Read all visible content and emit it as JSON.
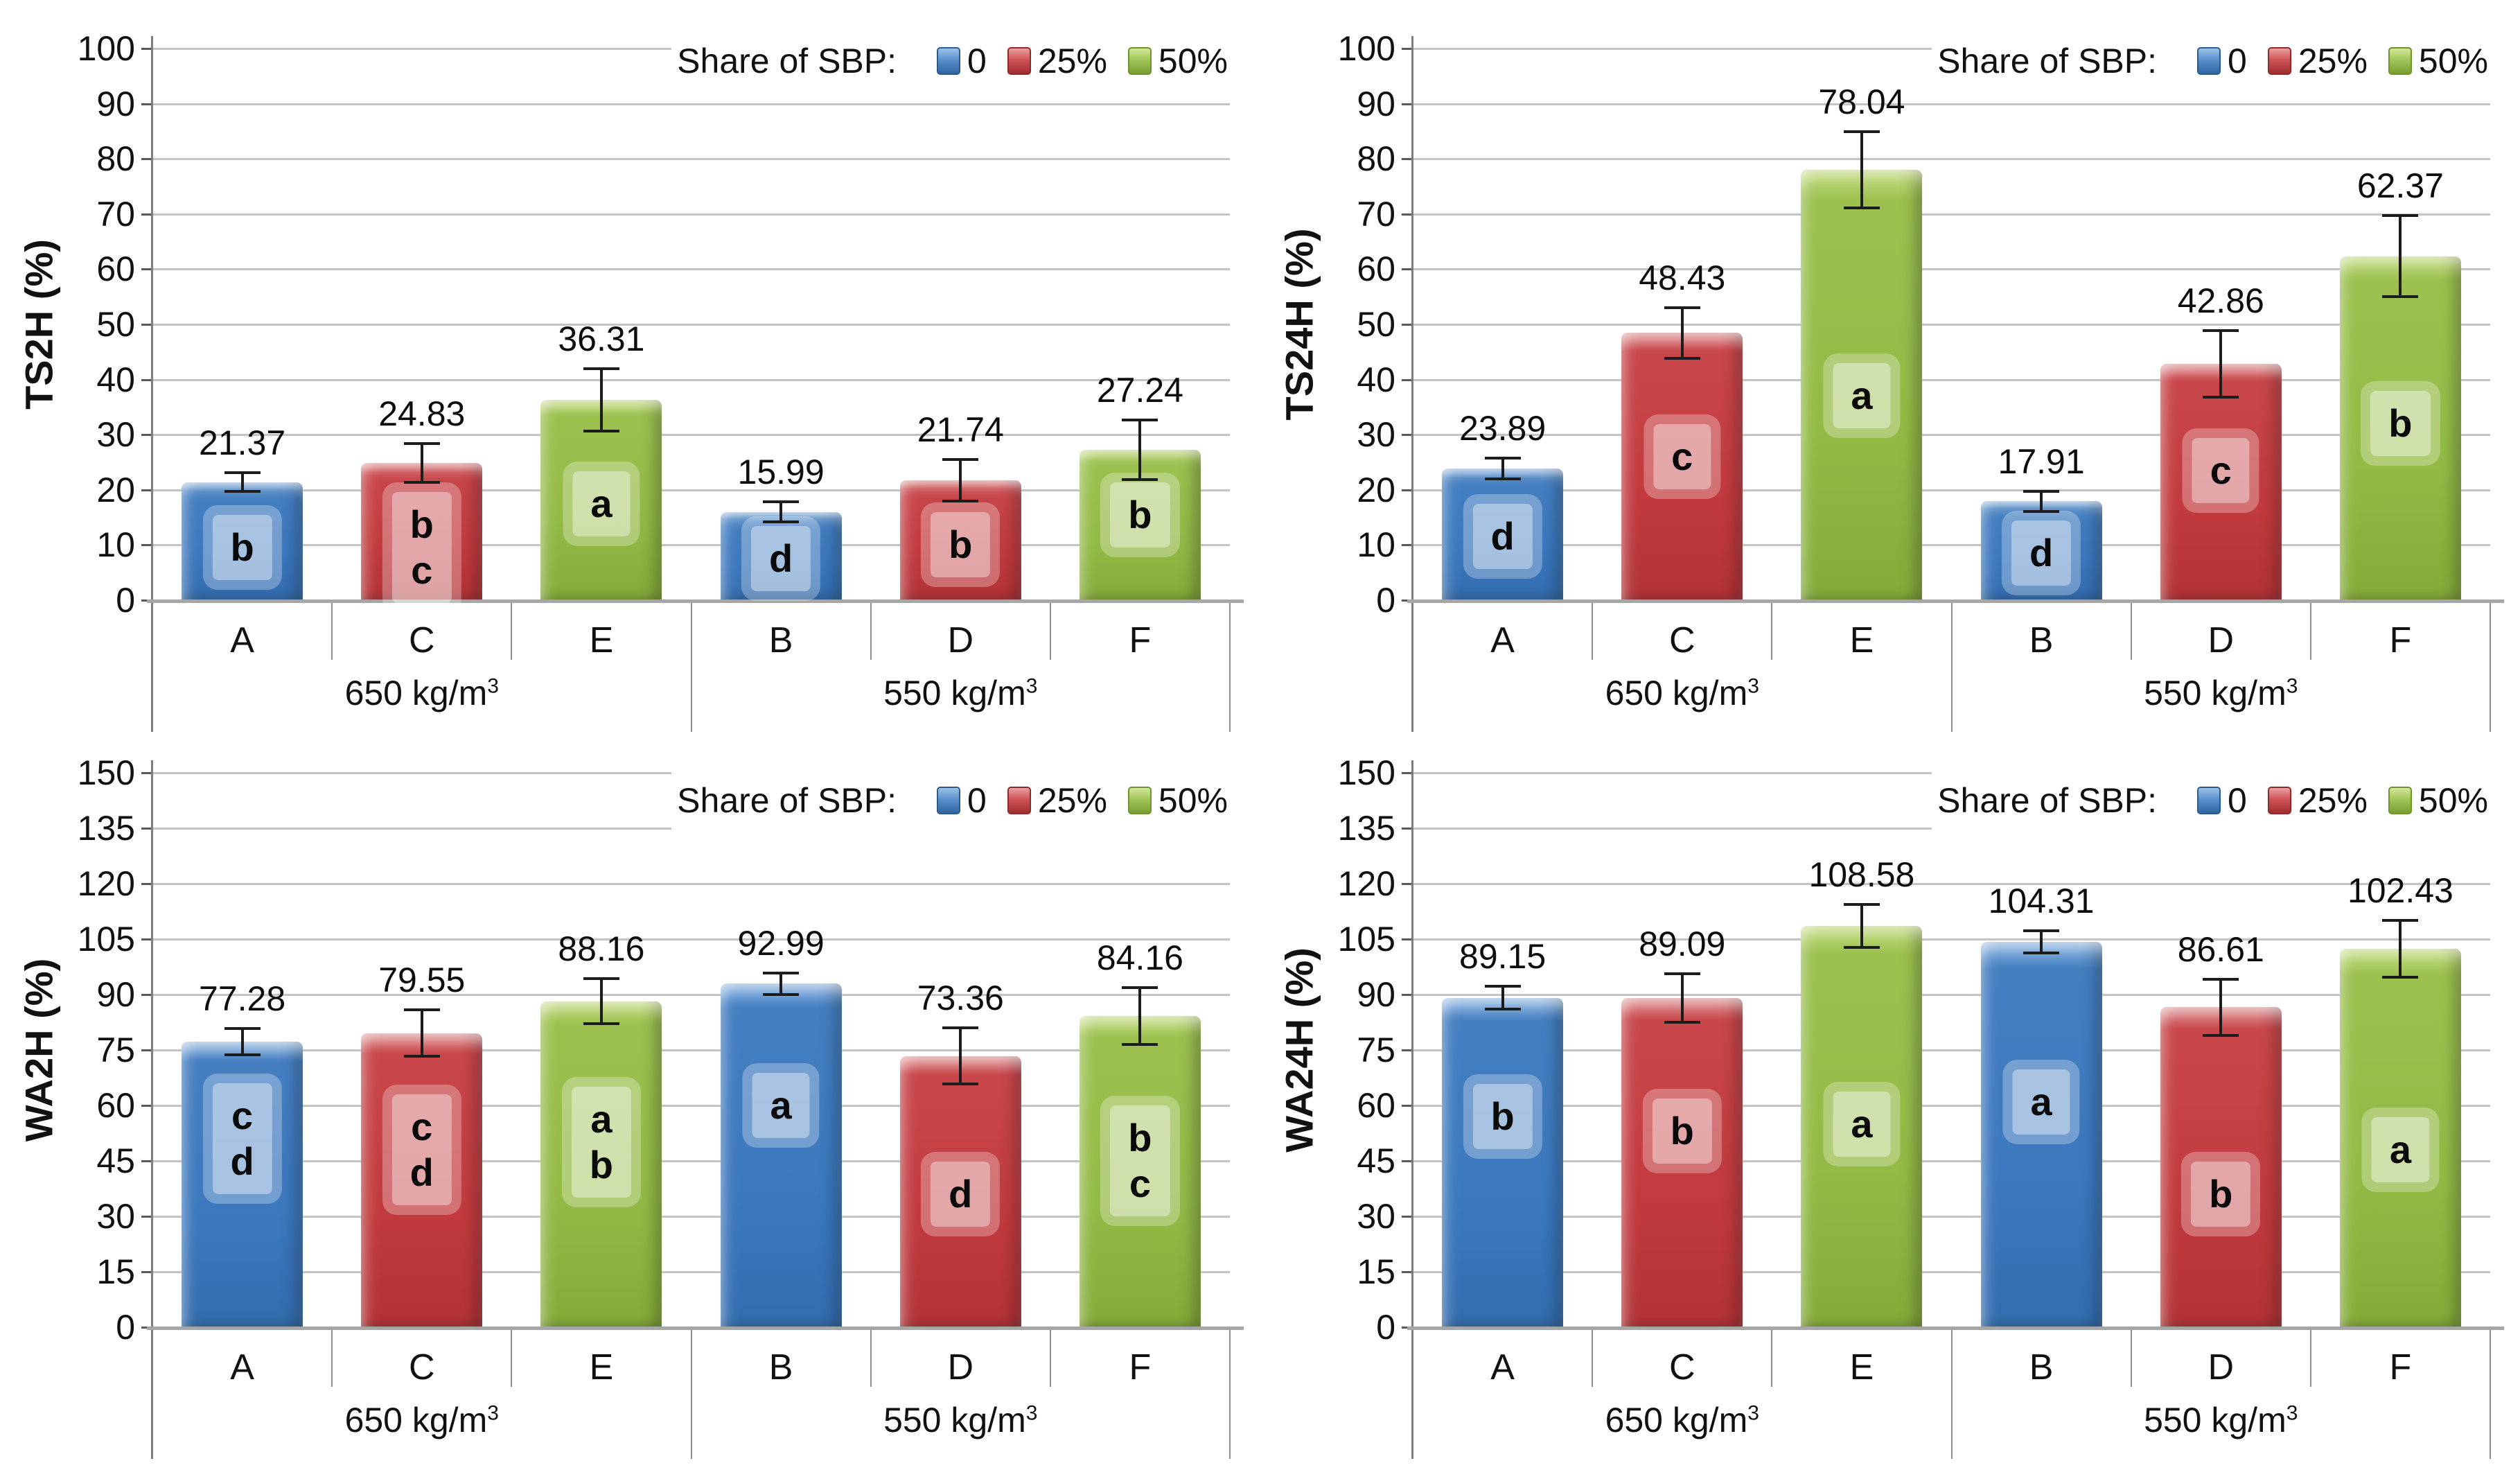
{
  "colors": {
    "blue_main": "#3B78BD",
    "blue_light": "#8FB8E4",
    "blue_dark": "#2D5F97",
    "red_main": "#C23B3E",
    "red_light": "#E08E8F",
    "red_dark": "#9A2F31",
    "green_main": "#93BA45",
    "green_light": "#C6DE82",
    "green_dark": "#72982E",
    "gridline": "#C4C4C4",
    "x_axis": "#A6A6A6",
    "y_axis": "#7D7D7D",
    "text": "#111111"
  },
  "legend": {
    "title": "Share of SBP:",
    "items": [
      {
        "label": "0",
        "color": "blue"
      },
      {
        "label": "25%",
        "color": "red"
      },
      {
        "label": "50%",
        "color": "green"
      }
    ]
  },
  "chart_data": [
    {
      "type": "bar",
      "ylabel": "TS2H (%)",
      "ylim": [
        0,
        100
      ],
      "ytick_step": 10,
      "grid": true,
      "legend_position": "top-right",
      "categories": [
        "A",
        "C",
        "E",
        "B",
        "D",
        "F"
      ],
      "groups": [
        {
          "label": "650 kg/m",
          "sup": "3"
        },
        {
          "label": "550 kg/m",
          "sup": "3"
        }
      ],
      "bars": [
        {
          "category": "A",
          "color": "blue",
          "value": 21.37,
          "label": "21.37",
          "error": 1.7,
          "letters": [
            "b"
          ],
          "letter_y": 9.5
        },
        {
          "category": "C",
          "color": "red",
          "value": 24.83,
          "label": "24.83",
          "error": 3.5,
          "letters": [
            "b",
            "c"
          ],
          "letter_y": 9.5
        },
        {
          "category": "E",
          "color": "green",
          "value": 36.31,
          "label": "36.31",
          "error": 5.7,
          "letters": [
            "a"
          ],
          "letter_y": 17.5
        },
        {
          "category": "B",
          "color": "blue",
          "value": 15.99,
          "label": "15.99",
          "error": 1.8,
          "letters": [
            "d"
          ],
          "letter_y": 7.5
        },
        {
          "category": "D",
          "color": "red",
          "value": 21.74,
          "label": "21.74",
          "error": 3.8,
          "letters": [
            "b"
          ],
          "letter_y": 10
        },
        {
          "category": "F",
          "color": "green",
          "value": 27.24,
          "label": "27.24",
          "error": 5.4,
          "letters": [
            "b"
          ],
          "letter_y": 15.5
        }
      ]
    },
    {
      "type": "bar",
      "ylabel": "TS24H (%)",
      "ylim": [
        0,
        100
      ],
      "ytick_step": 10,
      "grid": true,
      "legend_position": "top-right",
      "categories": [
        "A",
        "C",
        "E",
        "B",
        "D",
        "F"
      ],
      "groups": [
        {
          "label": "650 kg/m",
          "sup": "3"
        },
        {
          "label": "550 kg/m",
          "sup": "3"
        }
      ],
      "bars": [
        {
          "category": "A",
          "color": "blue",
          "value": 23.89,
          "label": "23.89",
          "error": 1.9,
          "letters": [
            "d"
          ],
          "letter_y": 11.5
        },
        {
          "category": "C",
          "color": "red",
          "value": 48.43,
          "label": "48.43",
          "error": 4.6,
          "letters": [
            "c"
          ],
          "letter_y": 26
        },
        {
          "category": "E",
          "color": "green",
          "value": 78.04,
          "label": "78.04",
          "error": 6.9,
          "letters": [
            "a"
          ],
          "letter_y": 37
        },
        {
          "category": "B",
          "color": "blue",
          "value": 17.91,
          "label": "17.91",
          "error": 1.8,
          "letters": [
            "d"
          ],
          "letter_y": 8.5
        },
        {
          "category": "D",
          "color": "red",
          "value": 42.86,
          "label": "42.86",
          "error": 6.0,
          "letters": [
            "c"
          ],
          "letter_y": 23.5
        },
        {
          "category": "F",
          "color": "green",
          "value": 62.37,
          "label": "62.37",
          "error": 7.4,
          "letters": [
            "b"
          ],
          "letter_y": 32
        }
      ]
    },
    {
      "type": "bar",
      "ylabel": "WA2H (%)",
      "ylim": [
        0,
        150
      ],
      "ytick_step": 15,
      "grid": true,
      "legend_position": "top-right",
      "categories": [
        "A",
        "C",
        "E",
        "B",
        "D",
        "F"
      ],
      "groups": [
        {
          "label": "650 kg/m",
          "sup": "3"
        },
        {
          "label": "550 kg/m",
          "sup": "3"
        }
      ],
      "bars": [
        {
          "category": "A",
          "color": "blue",
          "value": 77.28,
          "label": "77.28",
          "error": 3.5,
          "letters": [
            "c",
            "d"
          ],
          "letter_y": 51
        },
        {
          "category": "C",
          "color": "red",
          "value": 79.55,
          "label": "79.55",
          "error": 6.3,
          "letters": [
            "c",
            "d"
          ],
          "letter_y": 48
        },
        {
          "category": "E",
          "color": "green",
          "value": 88.16,
          "label": "88.16",
          "error": 6.1,
          "letters": [
            "a",
            "b"
          ],
          "letter_y": 50
        },
        {
          "category": "B",
          "color": "blue",
          "value": 92.99,
          "label": "92.99",
          "error": 2.9,
          "letters": [
            "a"
          ],
          "letter_y": 60
        },
        {
          "category": "D",
          "color": "red",
          "value": 73.36,
          "label": "73.36",
          "error": 7.6,
          "letters": [
            "d"
          ],
          "letter_y": 36
        },
        {
          "category": "F",
          "color": "green",
          "value": 84.16,
          "label": "84.16",
          "error": 7.7,
          "letters": [
            "b",
            "c"
          ],
          "letter_y": 45
        }
      ]
    },
    {
      "type": "bar",
      "ylabel": "WA24H (%)",
      "ylim": [
        0,
        150
      ],
      "ytick_step": 15,
      "grid": true,
      "legend_position": "top-right",
      "categories": [
        "A",
        "C",
        "E",
        "B",
        "D",
        "F"
      ],
      "groups": [
        {
          "label": "650 kg/m",
          "sup": "3"
        },
        {
          "label": "550 kg/m",
          "sup": "3"
        }
      ],
      "bars": [
        {
          "category": "A",
          "color": "blue",
          "value": 89.15,
          "label": "89.15",
          "error": 3.1,
          "letters": [
            "b"
          ],
          "letter_y": 57
        },
        {
          "category": "C",
          "color": "red",
          "value": 89.09,
          "label": "89.09",
          "error": 6.5,
          "letters": [
            "b"
          ],
          "letter_y": 53
        },
        {
          "category": "E",
          "color": "green",
          "value": 108.58,
          "label": "108.58",
          "error": 5.8,
          "letters": [
            "a"
          ],
          "letter_y": 55
        },
        {
          "category": "B",
          "color": "blue",
          "value": 104.31,
          "label": "104.31",
          "error": 3.0,
          "letters": [
            "a"
          ],
          "letter_y": 61
        },
        {
          "category": "D",
          "color": "red",
          "value": 86.61,
          "label": "86.61",
          "error": 7.6,
          "letters": [
            "b"
          ],
          "letter_y": 36
        },
        {
          "category": "F",
          "color": "green",
          "value": 102.43,
          "label": "102.43",
          "error": 7.7,
          "letters": [
            "a"
          ],
          "letter_y": 48
        }
      ]
    }
  ]
}
